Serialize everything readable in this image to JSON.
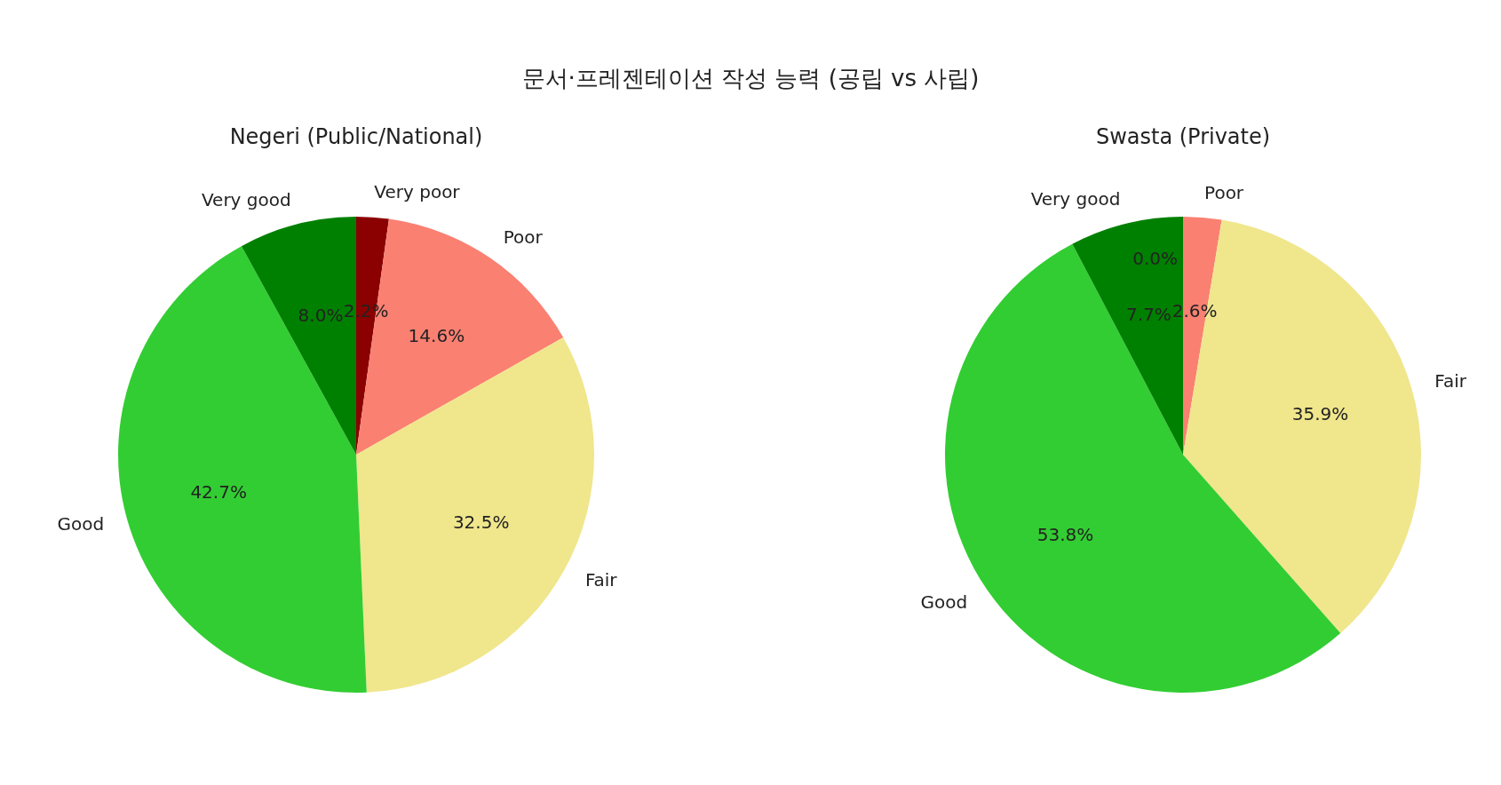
{
  "chart_data": [
    {
      "type": "pie",
      "title": "문서·프레젠테이션 작성 능력 (공립 vs 사립)",
      "subtitle": "Negeri (Public/National)",
      "categories": [
        "Very poor",
        "Poor",
        "Fair",
        "Good",
        "Very good"
      ],
      "values": [
        2.2,
        14.6,
        32.5,
        42.7,
        8.0
      ],
      "colors": [
        "#8b0000",
        "#fa8072",
        "#f0e68c",
        "#32cd32",
        "#008000"
      ],
      "value_labels": [
        "2.2%",
        "14.6%",
        "32.5%",
        "42.7%",
        "8.0%"
      ]
    },
    {
      "type": "pie",
      "subtitle": "Swasta (Private)",
      "categories": [
        null,
        "Poor",
        "Fair",
        "Good",
        "Very good"
      ],
      "values": [
        0,
        2.6,
        35.9,
        53.8,
        7.7
      ],
      "colors": [
        "#8b0000",
        "#fa8072",
        "#f0e68c",
        "#32cd32",
        "#008000"
      ],
      "value_labels": [
        "0.0%",
        "2.6%",
        "35.9%",
        "53.8%",
        "7.7%"
      ]
    }
  ]
}
